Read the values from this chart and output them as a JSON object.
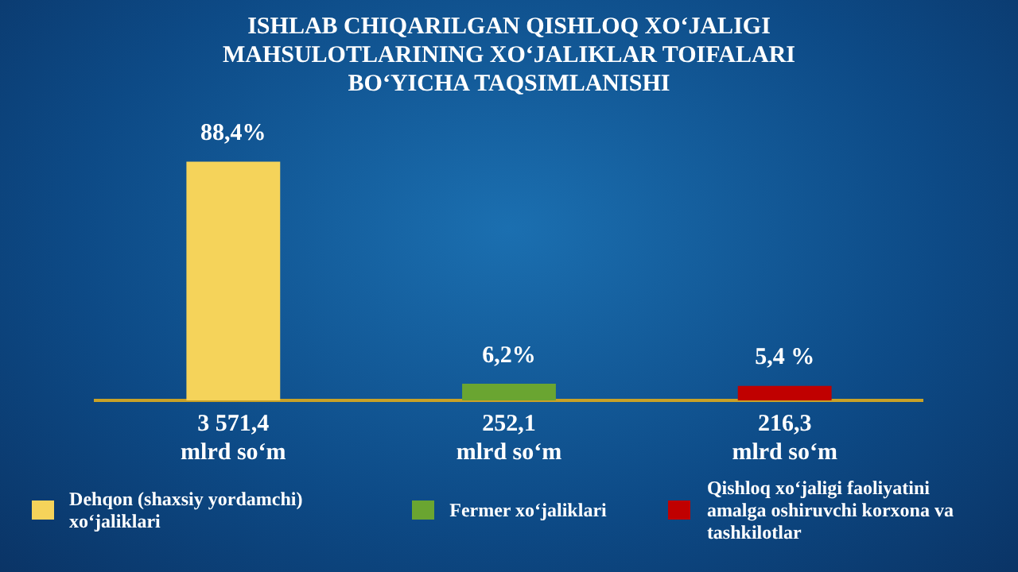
{
  "chart_data": {
    "type": "bar",
    "title": "ISHLAB CHIQARILGAN QISHLOQ XO‘JALIGI\nMAHSULOTLARINING XO‘JALIKLAR TOIFALARI\nBO‘YICHA TAQSIMLANISHI",
    "categories": [
      "3 571,4\nmlrd so‘m",
      "252,1\nmlrd so‘m",
      "216,3\nmlrd so‘m"
    ],
    "tick_labels": "x",
    "grid": false,
    "legend": "bottom",
    "series": [
      {
        "name": "Dehqon (shaxsiy yordamchi) xo‘jaliklari",
        "color": "#f5d35a",
        "values": [
          88.4,
          null,
          null
        ],
        "value_labels": [
          "88,4%",
          null,
          null
        ]
      },
      {
        "name": "Fermer xo‘jaliklari",
        "color": "#6aa531",
        "values": [
          null,
          6.2,
          null
        ],
        "value_labels": [
          null,
          "6,2%",
          null
        ]
      },
      {
        "name": "Qishloq xo‘jaligi faoliyatini amalga oshiruvchi korxona va tashkilotlar",
        "color": "#c00000",
        "values": [
          null,
          null,
          5.4
        ],
        "value_labels": [
          null,
          null,
          "5,4 %"
        ]
      }
    ]
  }
}
